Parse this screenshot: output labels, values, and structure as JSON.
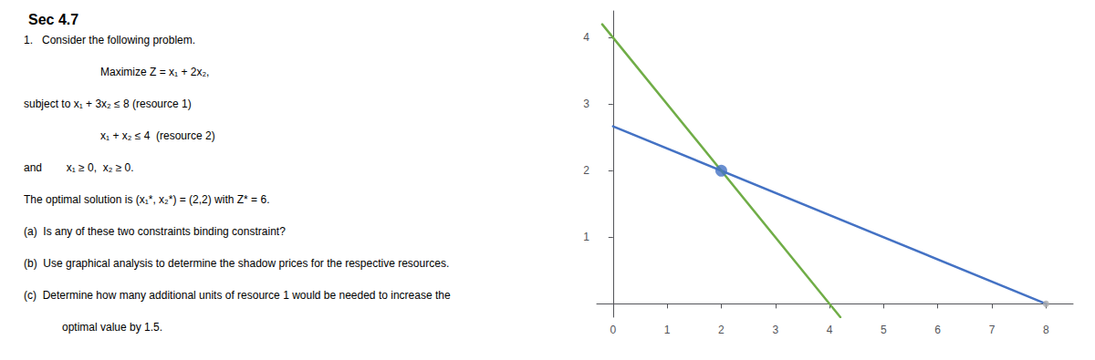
{
  "chart_data": {
    "type": "line",
    "title": "Sec 4.7",
    "annotations": [
      "1.   Consider the following problem.",
      "Maximize Z = x₁ + 2x₂,",
      "subject to x₁ + 3x₂ ≤ 8 (resource 1)",
      "x₁ + x₂ ≤ 4  (resource 2)",
      "and        x₁ ≥ 0,  x₂ ≥ 0.",
      "The optimal solution is (x₁*, x₂*) = (2,2) with Z* = 6.",
      "(a)  Is any of these two constraints binding constraint?",
      "(b)  Use graphical analysis to determine the shadow prices for the respective resources.",
      "(c)  Determine how many additional units of resource 1 would be needed to increase the",
      "optimal value by 1.5."
    ],
    "series": [
      {
        "type": "line",
        "color": "#4472C4",
        "x": [
          0,
          8
        ],
        "values": [
          2.6667,
          0
        ]
      },
      {
        "type": "line",
        "color": "#70AD47",
        "x": [
          -0.2,
          4.2
        ],
        "values": [
          4.2,
          -0.2
        ]
      },
      {
        "type": "scatter",
        "color": "#4472C4",
        "x": [
          2
        ],
        "values": [
          2
        ]
      },
      {
        "type": "scatter",
        "color": "#aaaaaa",
        "x": [
          8
        ],
        "values": [
          0
        ]
      }
    ],
    "xlim": [
      -0.3,
      8.5
    ],
    "ylim": [
      -0.2,
      4.4
    ],
    "xticks": [
      0,
      1,
      2,
      3,
      4,
      5,
      6,
      7,
      8
    ],
    "yticks": [
      1,
      2,
      3,
      4
    ],
    "grid": false
  }
}
